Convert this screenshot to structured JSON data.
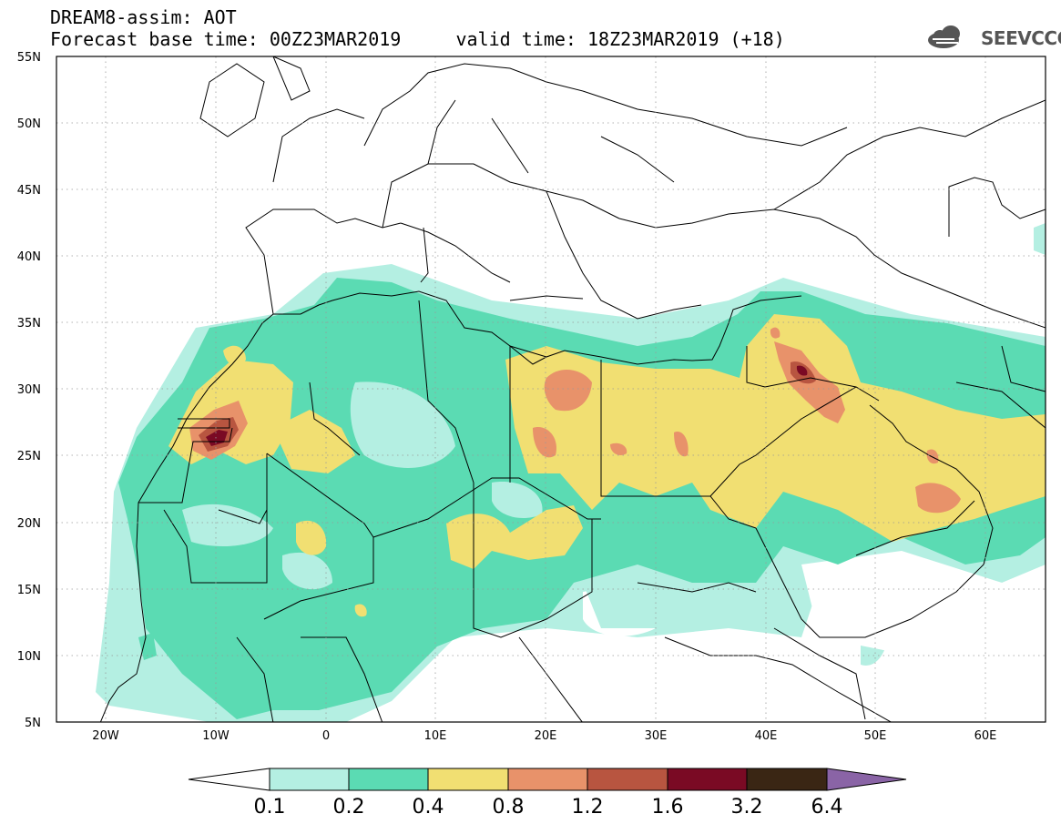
{
  "header": {
    "line1": "DREAM8-assim: AOT",
    "line2": "Forecast base time: 00Z23MAR2019     valid time: 18Z23MAR2019 (+18)",
    "logo_text": "SEEVCCC"
  },
  "map": {
    "lon_range": [
      -25,
      65
    ],
    "lat_range": [
      5,
      55
    ],
    "lat_labels": [
      "55N",
      "50N",
      "45N",
      "40N",
      "35N",
      "30N",
      "25N",
      "20N",
      "15N",
      "10N",
      "5N"
    ],
    "lon_labels": [
      "20W",
      "10W",
      "0",
      "10E",
      "20E",
      "30E",
      "40E",
      "50E",
      "60E"
    ],
    "grid": true
  },
  "colorbar": {
    "labels": [
      "0.1",
      "0.2",
      "0.4",
      "0.8",
      "1.2",
      "1.6",
      "3.2",
      "6.4"
    ],
    "colors": [
      "#b4efe2",
      "#5bdbb3",
      "#f1df72",
      "#e8926a",
      "#b85540",
      "#7a0a24",
      "#3a2614",
      "#8a64a6"
    ]
  },
  "logo_icon": "cloud-icon"
}
